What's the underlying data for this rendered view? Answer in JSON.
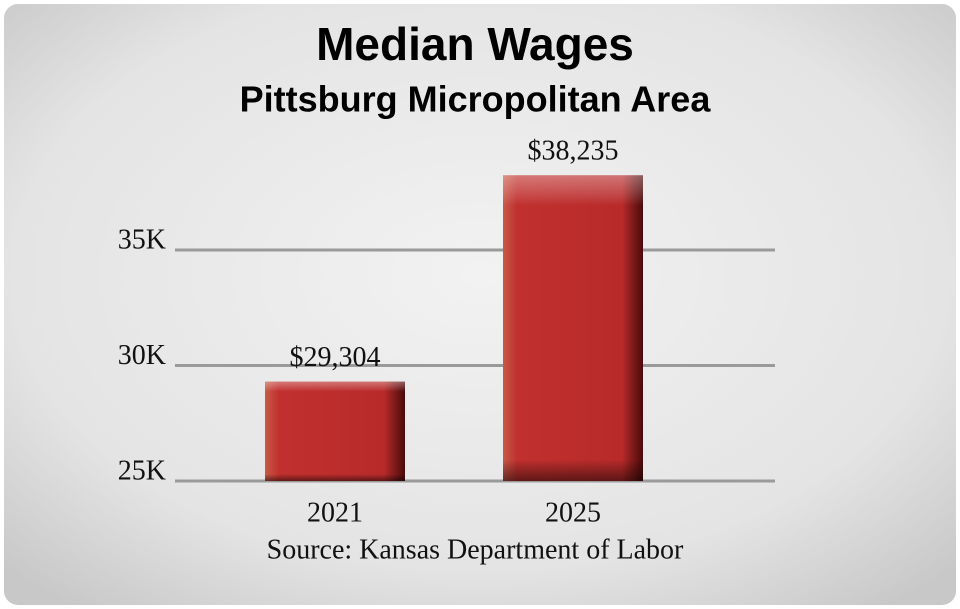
{
  "chart_data": {
    "type": "bar",
    "title": "Median Wages",
    "subtitle": "Pittsburg Micropolitan Area",
    "source": "Source: Kansas Department of Labor",
    "categories": [
      "2021",
      "2025"
    ],
    "values": [
      29304,
      38235
    ],
    "value_labels": [
      "$29,304",
      "$38,235"
    ],
    "color": "#c0302e",
    "ylim": [
      25000,
      39000
    ],
    "yticks": [
      {
        "value": 25000,
        "label": "25K"
      },
      {
        "value": 30000,
        "label": "30K"
      },
      {
        "value": 35000,
        "label": "35K"
      }
    ],
    "grid": true
  }
}
